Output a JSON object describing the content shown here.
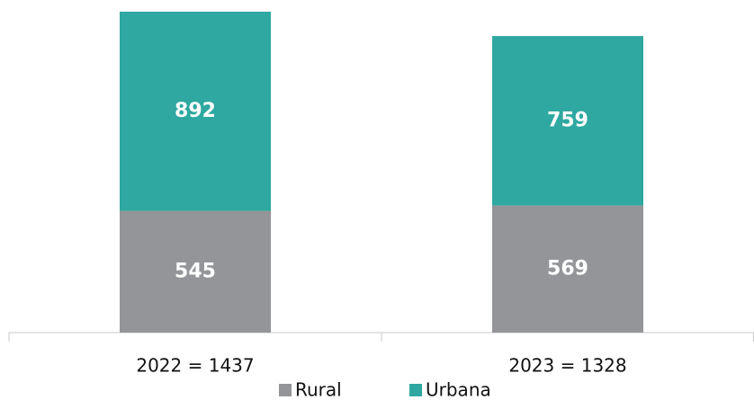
{
  "chart_data": {
    "type": "stacked_bar",
    "categories": [
      "2022 = 1437",
      "2023 = 1328"
    ],
    "series": [
      {
        "name": "Rural",
        "color": "#939598",
        "values": [
          545,
          569
        ]
      },
      {
        "name": "Urbana",
        "color": "#2ea8a0",
        "values": [
          892,
          759
        ]
      }
    ],
    "legend": "bottom"
  }
}
